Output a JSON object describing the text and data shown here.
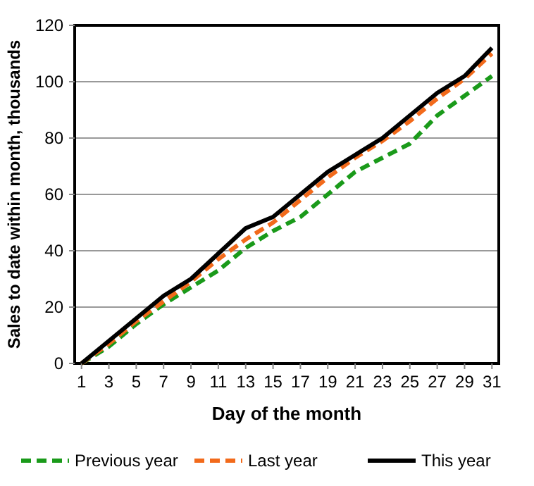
{
  "chart_data": {
    "type": "line",
    "xlabel": "Day of the month",
    "ylabel": "Sales to date within month, thousands",
    "x": [
      1,
      3,
      5,
      7,
      9,
      11,
      13,
      15,
      17,
      19,
      21,
      23,
      25,
      27,
      29,
      31
    ],
    "xlim": [
      0.5,
      31.5
    ],
    "xticks": [
      1,
      3,
      5,
      7,
      9,
      11,
      13,
      15,
      17,
      19,
      21,
      23,
      25,
      27,
      29,
      31
    ],
    "ylim": [
      0,
      120
    ],
    "yticks": [
      0,
      20,
      40,
      60,
      80,
      100,
      120
    ],
    "grid": "y",
    "legend": "bottom",
    "series": [
      {
        "name": "Previous year",
        "color": "#1a9a1a",
        "line_style": "dashed",
        "values": [
          0,
          6,
          14,
          21,
          27,
          33,
          41,
          47,
          52,
          60,
          68,
          73,
          78,
          88,
          95,
          102
        ]
      },
      {
        "name": "Last year",
        "color": "#f26a1b",
        "line_style": "dashed",
        "values": [
          0,
          7,
          15,
          22,
          29,
          37,
          44,
          50,
          58,
          66,
          73,
          79,
          86,
          94,
          101,
          110
        ]
      },
      {
        "name": "This year",
        "color": "#000000",
        "line_style": "solid",
        "values": [
          0,
          8,
          16,
          24,
          30,
          39,
          48,
          52,
          60,
          68,
          74,
          80,
          88,
          96,
          102,
          112
        ]
      }
    ]
  }
}
